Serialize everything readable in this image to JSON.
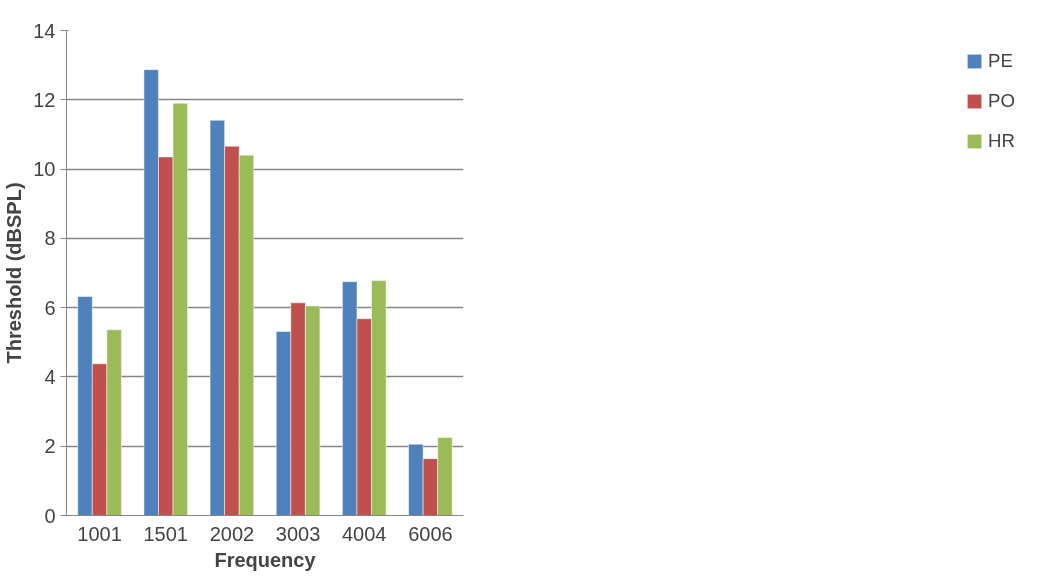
{
  "chart_data": {
    "type": "bar",
    "xlabel": "Frequency",
    "ylabel": "Threshold (dBSPL)",
    "categories": [
      "1001",
      "1501",
      "2002",
      "3003",
      "4004",
      "6006"
    ],
    "series": [
      {
        "name": "PE",
        "color": "#4f81bd",
        "values": [
          6.32,
          12.87,
          11.41,
          5.31,
          6.75,
          2.06
        ]
      },
      {
        "name": "PO",
        "color": "#c0504d",
        "values": [
          4.38,
          10.35,
          10.66,
          6.14,
          5.68,
          1.64
        ]
      },
      {
        "name": "HR",
        "color": "#9bbb59",
        "values": [
          5.36,
          11.9,
          10.4,
          6.05,
          6.78,
          2.25
        ]
      }
    ],
    "ylim": [
      0,
      14
    ],
    "yticks": [
      0,
      2,
      4,
      6,
      8,
      10,
      12,
      14
    ],
    "grid": "y",
    "legend": "right"
  }
}
